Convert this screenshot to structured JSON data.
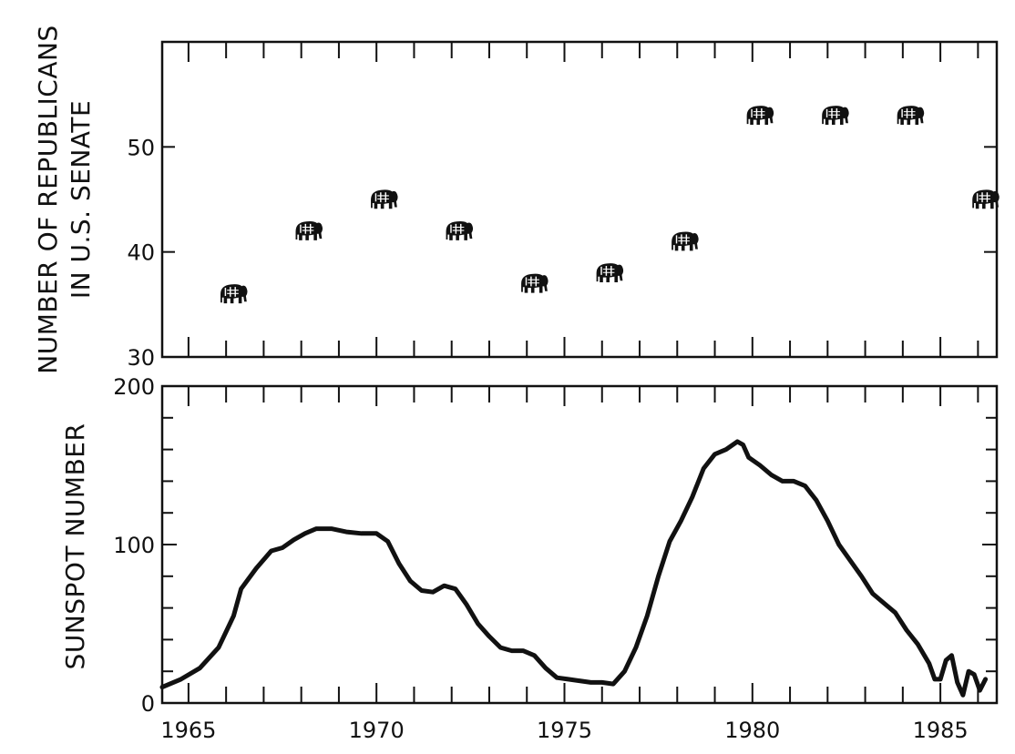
{
  "colors": {
    "ink": "#111111",
    "background": "#ffffff"
  },
  "chart_data": [
    {
      "type": "scatter",
      "marker": "elephant-icon",
      "ylabel_lines": [
        "NUMBER OF REPUBLICANS",
        "IN U.S. SENATE"
      ],
      "xlim": [
        1964.3,
        1986.5
      ],
      "ylim": [
        30,
        60
      ],
      "yticks": [
        30,
        40,
        50
      ],
      "grid": false,
      "x": [
        1966.2,
        1968.2,
        1970.2,
        1972.2,
        1974.2,
        1976.2,
        1978.2,
        1980.2,
        1982.2,
        1984.2,
        1986.2
      ],
      "y": [
        36,
        42,
        45,
        42,
        37,
        38,
        41,
        53,
        53,
        53,
        45
      ]
    },
    {
      "type": "line",
      "ylabel": "SUNSPOT NUMBER",
      "xlim": [
        1964.3,
        1986.5
      ],
      "ylim": [
        0,
        200
      ],
      "yticks": [
        0,
        100,
        200
      ],
      "xticks": [
        1965,
        1970,
        1975,
        1980,
        1985
      ],
      "grid": false,
      "x": [
        1964.3,
        1964.8,
        1965.3,
        1965.8,
        1966.2,
        1966.4,
        1966.8,
        1967.2,
        1967.5,
        1967.8,
        1968.1,
        1968.4,
        1968.8,
        1969.2,
        1969.6,
        1970.0,
        1970.3,
        1970.6,
        1970.9,
        1971.2,
        1971.5,
        1971.8,
        1972.1,
        1972.4,
        1972.7,
        1973.0,
        1973.3,
        1973.6,
        1973.9,
        1974.2,
        1974.5,
        1974.8,
        1975.1,
        1975.4,
        1975.7,
        1976.0,
        1976.3,
        1976.6,
        1976.9,
        1977.2,
        1977.5,
        1977.8,
        1978.1,
        1978.4,
        1978.7,
        1979.0,
        1979.3,
        1979.6,
        1979.75,
        1979.9,
        1980.2,
        1980.5,
        1980.8,
        1981.1,
        1981.4,
        1981.7,
        1982.0,
        1982.3,
        1982.6,
        1982.9,
        1983.2,
        1983.5,
        1983.8,
        1984.1,
        1984.4,
        1984.7,
        1984.85,
        1985.0,
        1985.15,
        1985.3,
        1985.45,
        1985.6,
        1985.75,
        1985.9,
        1986.05,
        1986.2
      ],
      "y": [
        10,
        15,
        22,
        35,
        55,
        72,
        85,
        96,
        98,
        103,
        107,
        110,
        110,
        108,
        107,
        107,
        102,
        88,
        77,
        71,
        70,
        74,
        72,
        62,
        50,
        42,
        35,
        33,
        33,
        30,
        22,
        16,
        15,
        14,
        13,
        13,
        12,
        20,
        35,
        55,
        80,
        102,
        115,
        130,
        148,
        157,
        160,
        165,
        163,
        155,
        150,
        144,
        140,
        140,
        137,
        128,
        115,
        100,
        90,
        80,
        69,
        63,
        57,
        46,
        37,
        25,
        15,
        15,
        27,
        30,
        13,
        5,
        20,
        18,
        8,
        15
      ]
    }
  ]
}
